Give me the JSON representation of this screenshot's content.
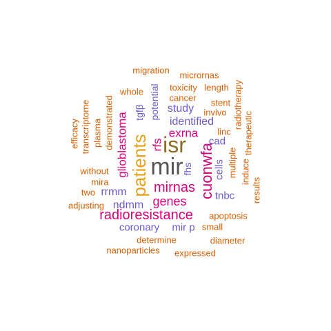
{
  "words": [
    {
      "text": "mir",
      "color": "#555555"
    },
    {
      "text": "isr",
      "color": "#8a6d1e"
    },
    {
      "text": "patients",
      "color": "#e6a117"
    },
    {
      "text": "cuonwfa",
      "color": "#d6007e"
    },
    {
      "text": "radioresistance",
      "color": "#d6007e"
    },
    {
      "text": "mirnas",
      "color": "#d6007e"
    },
    {
      "text": "genes",
      "color": "#d6007e"
    },
    {
      "text": "exrna",
      "color": "#d6007e"
    },
    {
      "text": "glioblastoma",
      "color": "#d6007e"
    },
    {
      "text": "rfs",
      "color": "#d6007e"
    },
    {
      "text": "identified",
      "color": "#6a5acd"
    },
    {
      "text": "study",
      "color": "#6a5acd"
    },
    {
      "text": "rrmm",
      "color": "#6a5acd"
    },
    {
      "text": "ndmm",
      "color": "#6a5acd"
    },
    {
      "text": "cells",
      "color": "#6a5acd"
    },
    {
      "text": "tnbc",
      "color": "#6a5acd"
    },
    {
      "text": "cad",
      "color": "#6a5acd"
    },
    {
      "text": "coronary",
      "color": "#6a5acd"
    },
    {
      "text": "mir p",
      "color": "#6a5acd"
    },
    {
      "text": "fhs",
      "color": "#6a5acd"
    },
    {
      "text": "tgfβ",
      "color": "#6a5acd"
    },
    {
      "text": "potential",
      "color": "#6a5acd"
    },
    {
      "text": "migration",
      "color": "#d95f02"
    },
    {
      "text": "micrornas",
      "color": "#d95f02"
    },
    {
      "text": "whole",
      "color": "#d95f02"
    },
    {
      "text": "toxicity",
      "color": "#d95f02"
    },
    {
      "text": "length",
      "color": "#d95f02"
    },
    {
      "text": "cancer",
      "color": "#d95f02"
    },
    {
      "text": "stent",
      "color": "#d95f02"
    },
    {
      "text": "invivo",
      "color": "#d95f02"
    },
    {
      "text": "linc",
      "color": "#d95f02"
    },
    {
      "text": "radiotherapy",
      "color": "#d95f02"
    },
    {
      "text": "therapeutic",
      "color": "#d95f02"
    },
    {
      "text": "multiple",
      "color": "#d95f02"
    },
    {
      "text": "induce",
      "color": "#d95f02"
    },
    {
      "text": "results",
      "color": "#d95f02"
    },
    {
      "text": "efficacy",
      "color": "#d95f02"
    },
    {
      "text": "transcriptome",
      "color": "#d95f02"
    },
    {
      "text": "plasma",
      "color": "#d95f02"
    },
    {
      "text": "demonstrated",
      "color": "#d95f02"
    },
    {
      "text": "without",
      "color": "#d95f02"
    },
    {
      "text": "mira",
      "color": "#d95f02"
    },
    {
      "text": "two",
      "color": "#d95f02"
    },
    {
      "text": "adjusting",
      "color": "#d95f02"
    },
    {
      "text": "apoptosis",
      "color": "#d95f02"
    },
    {
      "text": "small",
      "color": "#d95f02"
    },
    {
      "text": "determine",
      "color": "#d95f02"
    },
    {
      "text": "diameter",
      "color": "#d95f02"
    },
    {
      "text": "nanoparticles",
      "color": "#d95f02"
    },
    {
      "text": "expressed",
      "color": "#d95f02"
    }
  ]
}
